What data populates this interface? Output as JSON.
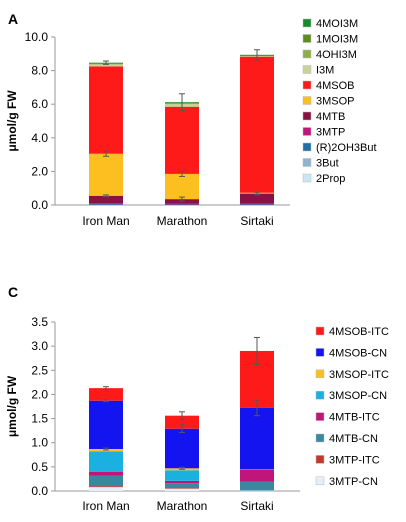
{
  "chart_data": [
    {
      "type": "bar",
      "stacked": true,
      "panel_label": "A",
      "categories": [
        "Iron Man",
        "Marathon",
        "Sirtaki"
      ],
      "ylabel": "μmol/g FW",
      "ylim": [
        0,
        10
      ],
      "yticks": [
        "0.0",
        "2.0",
        "4.0",
        "6.0",
        "8.0",
        "10.0"
      ],
      "legend_position": "right",
      "series": [
        {
          "name": "2Prop",
          "color": "#c9e6f2",
          "values": [
            0.0,
            0.0,
            0.0
          ]
        },
        {
          "name": "3But",
          "color": "#8fb3d0",
          "values": [
            0.0,
            0.0,
            0.0
          ]
        },
        {
          "name": "(R)2OH3But",
          "color": "#1f6fa5",
          "values": [
            0.05,
            0.05,
            0.05
          ]
        },
        {
          "name": "3MTP",
          "color": "#c0157a",
          "values": [
            0.05,
            0.02,
            0.03
          ]
        },
        {
          "name": "4MTB",
          "color": "#8a1142",
          "values": [
            0.45,
            0.28,
            0.6
          ]
        },
        {
          "name": "3MSOP",
          "color": "#fbc020",
          "values": [
            2.5,
            1.5,
            0.05
          ]
        },
        {
          "name": "4MSOB",
          "color": "#ff1a1a",
          "values": [
            5.2,
            4.0,
            8.1
          ]
        },
        {
          "name": "I3M",
          "color": "#c5d59a",
          "values": [
            0.12,
            0.15,
            0.05
          ]
        },
        {
          "name": "4OHI3M",
          "color": "#8fad4a",
          "values": [
            0.05,
            0.05,
            0.02
          ]
        },
        {
          "name": "1MOI3M",
          "color": "#5f8c1e",
          "values": [
            0.03,
            0.05,
            0.02
          ]
        },
        {
          "name": "4MOI3M",
          "color": "#1a8a2e",
          "values": [
            0.02,
            0.02,
            0.02
          ]
        }
      ],
      "error_bars": {
        "top": [
          0.1,
          0.5,
          0.3
        ],
        "3MSOP": [
          0.15,
          0.15,
          0.0
        ],
        "4MTB": [
          0.05,
          0.12,
          0.08
        ]
      }
    },
    {
      "type": "bar",
      "stacked": true,
      "panel_label": "C",
      "categories": [
        "Iron Man",
        "Marathon",
        "Sirtaki"
      ],
      "ylabel": "μmol/g FW",
      "ylim": [
        0,
        3.5
      ],
      "yticks": [
        "0.0",
        "0.5",
        "1.0",
        "1.5",
        "2.0",
        "2.5",
        "3.0",
        "3.5"
      ],
      "legend_position": "right",
      "series": [
        {
          "name": "3MTP-CN",
          "color": "#e8eef8",
          "values": [
            0.08,
            0.05,
            0.01
          ]
        },
        {
          "name": "3MTP-ITC",
          "color": "#c0392b",
          "values": [
            0.02,
            0.01,
            0.0
          ]
        },
        {
          "name": "4MTB-CN",
          "color": "#3a87a0",
          "values": [
            0.22,
            0.1,
            0.18
          ]
        },
        {
          "name": "4MTB-ITC",
          "color": "#c0157a",
          "values": [
            0.08,
            0.05,
            0.25
          ]
        },
        {
          "name": "3MSOP-CN",
          "color": "#1ab0e0",
          "values": [
            0.42,
            0.22,
            0.01
          ]
        },
        {
          "name": "3MSOP-ITC",
          "color": "#fbc020",
          "values": [
            0.05,
            0.04,
            0.0
          ]
        },
        {
          "name": "4MSOB-CN",
          "color": "#1414f0",
          "values": [
            1.0,
            0.82,
            1.27
          ]
        },
        {
          "name": "4MSOB-ITC",
          "color": "#ff1a1a",
          "values": [
            0.26,
            0.27,
            1.18
          ]
        }
      ],
      "error_bars": {
        "top": [
          0.03,
          0.08,
          0.28
        ],
        "4MSOB-CN": [
          0.02,
          0.08,
          0.16
        ],
        "3MSOP-ITC": [
          0.02,
          0.02,
          0.0
        ]
      }
    }
  ]
}
